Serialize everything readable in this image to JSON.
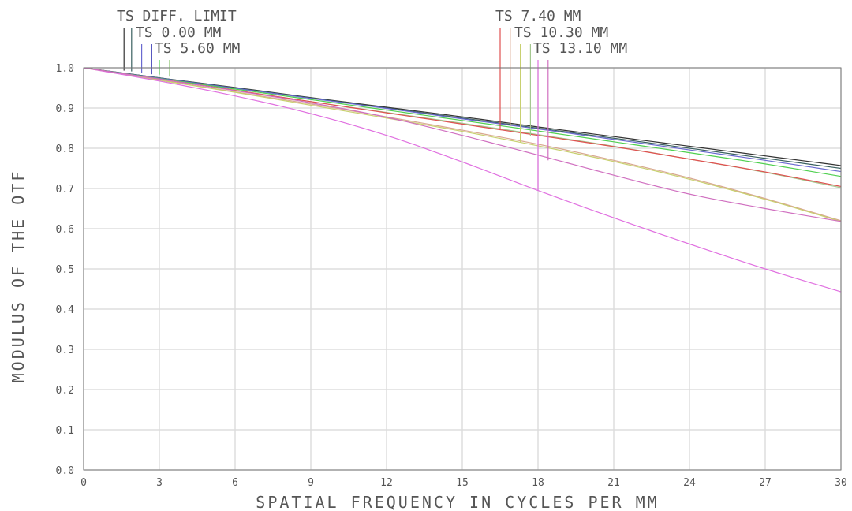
{
  "chart_data": {
    "type": "line",
    "xlabel": "SPATIAL FREQUENCY IN CYCLES PER MM",
    "ylabel": "MODULUS OF THE OTF",
    "xlim": [
      0,
      30
    ],
    "ylim": [
      0,
      1
    ],
    "x_ticks": [
      "0",
      "3",
      "6",
      "9",
      "12",
      "15",
      "18",
      "21",
      "24",
      "27",
      "30"
    ],
    "y_ticks": [
      "0.0",
      "0.1",
      "0.2",
      "0.3",
      "0.4",
      "0.5",
      "0.6",
      "0.7",
      "0.8",
      "0.9",
      "1.0"
    ],
    "grid": true,
    "x": [
      0,
      3,
      6,
      9,
      12,
      15,
      18,
      21,
      24,
      27,
      30
    ],
    "series": [
      {
        "name": "TS DIFF. LIMIT",
        "color": "#333333",
        "values": [
          1.0,
          0.975,
          0.951,
          0.926,
          0.902,
          0.878,
          0.853,
          0.829,
          0.805,
          0.781,
          0.757
        ]
      },
      {
        "name": "TS 0.00 MM",
        "color": "#3a6060",
        "values": [
          1.0,
          0.975,
          0.95,
          0.925,
          0.9,
          0.875,
          0.85,
          0.825,
          0.8,
          0.775,
          0.75
        ]
      },
      {
        "name": "TS 0.00 MM",
        "color": "#6a6ad0",
        "values": [
          1.0,
          0.974,
          0.949,
          0.924,
          0.899,
          0.873,
          0.848,
          0.822,
          0.796,
          0.77,
          0.742
        ]
      },
      {
        "name": "TS 5.60 MM",
        "color": "#50d050",
        "values": [
          1.0,
          0.973,
          0.947,
          0.921,
          0.895,
          0.869,
          0.843,
          0.816,
          0.789,
          0.761,
          0.73
        ]
      },
      {
        "name": "TS 5.60 MM",
        "color": "#a4c890",
        "values": [
          1.0,
          0.972,
          0.944,
          0.916,
          0.889,
          0.862,
          0.834,
          0.805,
          0.773,
          0.74,
          0.702
        ]
      },
      {
        "name": "TS 7.40 MM",
        "color": "#e05050",
        "values": [
          1.0,
          0.972,
          0.944,
          0.916,
          0.888,
          0.86,
          0.832,
          0.804,
          0.773,
          0.741,
          0.705
        ]
      },
      {
        "name": "TS 7.40 MM",
        "color": "#d8a890",
        "values": [
          1.0,
          0.97,
          0.94,
          0.91,
          0.878,
          0.845,
          0.81,
          0.77,
          0.726,
          0.675,
          0.62
        ]
      },
      {
        "name": "TS 10.30 MM",
        "color": "#c8d070",
        "values": [
          1.0,
          0.969,
          0.939,
          0.907,
          0.875,
          0.842,
          0.806,
          0.767,
          0.723,
          0.673,
          0.618
        ]
      },
      {
        "name": "TS 13.10 MM",
        "color": "#e070e0",
        "values": [
          1.0,
          0.967,
          0.93,
          0.886,
          0.832,
          0.766,
          0.695,
          0.627,
          0.562,
          0.5,
          0.443
        ]
      },
      {
        "name": "TS 13.10 MM",
        "color": "#d070c0",
        "values": [
          1.0,
          0.972,
          0.943,
          0.913,
          0.877,
          0.832,
          0.783,
          0.733,
          0.686,
          0.65,
          0.618
        ]
      }
    ],
    "legend_groups": [
      {
        "labels": [
          "TS DIFF. LIMIT",
          "TS 0.00 MM",
          "TS 5.60 MM"
        ],
        "marker_colors": [
          "#333333",
          "#3a6060",
          "#6a6ad0",
          "#5858c0",
          "#50d050",
          "#a4d090"
        ]
      },
      {
        "labels": [
          "TS 7.40 MM",
          "TS 10.30 MM",
          "TS 13.10 MM"
        ],
        "marker_colors": [
          "#e05050",
          "#d8a890",
          "#c8d070",
          "#a4c890",
          "#e070e0",
          "#d070c0"
        ]
      }
    ]
  }
}
